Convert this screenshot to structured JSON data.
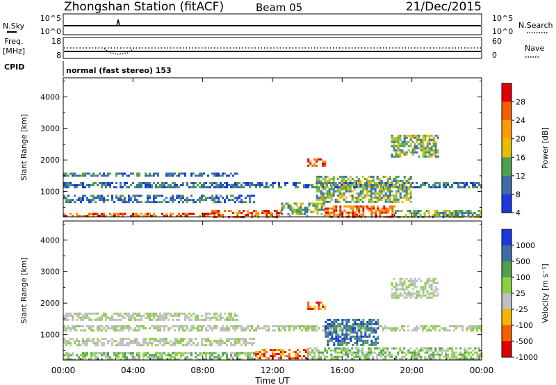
{
  "header": {
    "station": "Zhongshan Station (fitACF)",
    "beam": "Beam 05",
    "date": "21/Dec/2015"
  },
  "strips": {
    "nsky_label": "N.Sky",
    "nsky_ticks": [
      "10^5",
      "10^0"
    ],
    "nsearch_label": "N.Search",
    "nsearch_ticks": [
      "10^5",
      "10^0"
    ],
    "freq_label_line1": "Freq.",
    "freq_label_line2": "[MHz]",
    "freq_ticks": [
      "18",
      "8"
    ],
    "nave_label": "Nave",
    "nave_ticks": [
      "60",
      "0"
    ],
    "cpid_label": "CPID",
    "cpid_text": "normal (fast stereo) 153"
  },
  "chart_data": [
    {
      "type": "heatmap",
      "name": "power",
      "ylabel": "Slant Range [km]",
      "yticks": [
        1000,
        2000,
        3000,
        4000
      ],
      "ylim": [
        200,
        4600
      ],
      "xlim": [
        0,
        24
      ],
      "colorbar": {
        "label": "Power [dB]",
        "ticks": [
          "28",
          "24",
          "20",
          "16",
          "12",
          "8",
          "4"
        ],
        "colors": [
          "#e00000",
          "#f46000",
          "#fb9a00",
          "#e8bc00",
          "#4ea04e",
          "#3c6ea8",
          "#1a38e0"
        ]
      },
      "echo_regions": [
        {
          "t0": 0.0,
          "t1": 8.5,
          "r0": 220,
          "r1": 330,
          "level": "high"
        },
        {
          "t0": 8.5,
          "t1": 12.5,
          "r0": 220,
          "r1": 420,
          "level": "high"
        },
        {
          "t0": 12.5,
          "t1": 15.0,
          "r0": 300,
          "r1": 650,
          "level": "mid"
        },
        {
          "t0": 15.0,
          "t1": 19.0,
          "r0": 220,
          "r1": 560,
          "level": "high"
        },
        {
          "t0": 19.0,
          "t1": 24.0,
          "r0": 220,
          "r1": 420,
          "level": "mid"
        },
        {
          "t0": 0.0,
          "t1": 11.0,
          "r0": 650,
          "r1": 900,
          "level": "low"
        },
        {
          "t0": 0.0,
          "t1": 24.0,
          "r0": 1150,
          "r1": 1300,
          "level": "low"
        },
        {
          "t0": 0.0,
          "t1": 10.0,
          "r0": 1500,
          "r1": 1600,
          "level": "low"
        },
        {
          "t0": 14.5,
          "t1": 20.0,
          "r0": 700,
          "r1": 1500,
          "level": "mid"
        },
        {
          "t0": 18.8,
          "t1": 21.5,
          "r0": 2100,
          "r1": 2800,
          "level": "mid"
        },
        {
          "t0": 14.0,
          "t1": 15.0,
          "r0": 1850,
          "r1": 2050,
          "level": "high"
        }
      ]
    },
    {
      "type": "heatmap",
      "name": "velocity",
      "ylabel": "Slant Range [km]",
      "yticks": [
        1000,
        2000,
        3000,
        4000
      ],
      "ylim": [
        200,
        4600
      ],
      "xlim": [
        0,
        24
      ],
      "xticks": [
        "00:00",
        "04:00",
        "08:00",
        "12:00",
        "16:00",
        "20:00",
        "00:00"
      ],
      "xlabel": "Time UT",
      "colorbar": {
        "label": "Velocity [m s⁻¹]",
        "ticks": [
          "1000",
          "500",
          "100",
          "25",
          "-25",
          "-100",
          "-500",
          "-1000"
        ],
        "colors": [
          "#1a38e0",
          "#3c6ea8",
          "#4ea04e",
          "#88d040",
          "#c0c0c0",
          "#f8b400",
          "#f46000",
          "#e00000"
        ]
      },
      "echo_regions": [
        {
          "t0": 0.0,
          "t1": 11.0,
          "r0": 250,
          "r1": 450,
          "level": "green"
        },
        {
          "t0": 11.0,
          "t1": 14.0,
          "r0": 250,
          "r1": 550,
          "level": "orange"
        },
        {
          "t0": 14.0,
          "t1": 24.0,
          "r0": 250,
          "r1": 600,
          "level": "green"
        },
        {
          "t0": 0.0,
          "t1": 11.0,
          "r0": 650,
          "r1": 900,
          "level": "grey"
        },
        {
          "t0": 0.0,
          "t1": 24.0,
          "r0": 1150,
          "r1": 1300,
          "level": "grey"
        },
        {
          "t0": 0.0,
          "t1": 10.0,
          "r0": 1500,
          "r1": 1700,
          "level": "grey"
        },
        {
          "t0": 15.0,
          "t1": 18.0,
          "r0": 700,
          "r1": 1500,
          "level": "blue"
        },
        {
          "t0": 18.8,
          "t1": 21.5,
          "r0": 2200,
          "r1": 2800,
          "level": "grey"
        },
        {
          "t0": 14.0,
          "t1": 15.0,
          "r0": 1850,
          "r1": 2050,
          "level": "orange"
        }
      ]
    }
  ]
}
